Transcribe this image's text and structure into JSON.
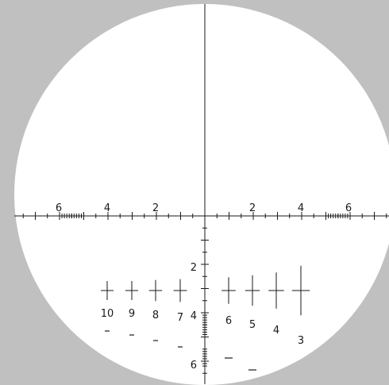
{
  "colors": {
    "background": "#c0c0c0",
    "field": "#ffffff",
    "ink": "#1a1a1a"
  },
  "reticle": {
    "horizontal_labels": {
      "left": [
        "6",
        "4",
        "2"
      ],
      "right": [
        "2",
        "4",
        "6"
      ]
    },
    "vertical_labels": [
      "2",
      "4",
      "6"
    ],
    "aim_posts": [
      {
        "label": "10",
        "size": 1.0
      },
      {
        "label": "9",
        "size": 1.0
      },
      {
        "label": "8",
        "size": 1.1
      },
      {
        "label": "7",
        "size": 1.2
      },
      {
        "label": "6",
        "size": 1.4
      },
      {
        "label": "5",
        "size": 1.6
      },
      {
        "label": "4",
        "size": 1.9
      },
      {
        "label": "3",
        "size": 2.6
      }
    ]
  }
}
